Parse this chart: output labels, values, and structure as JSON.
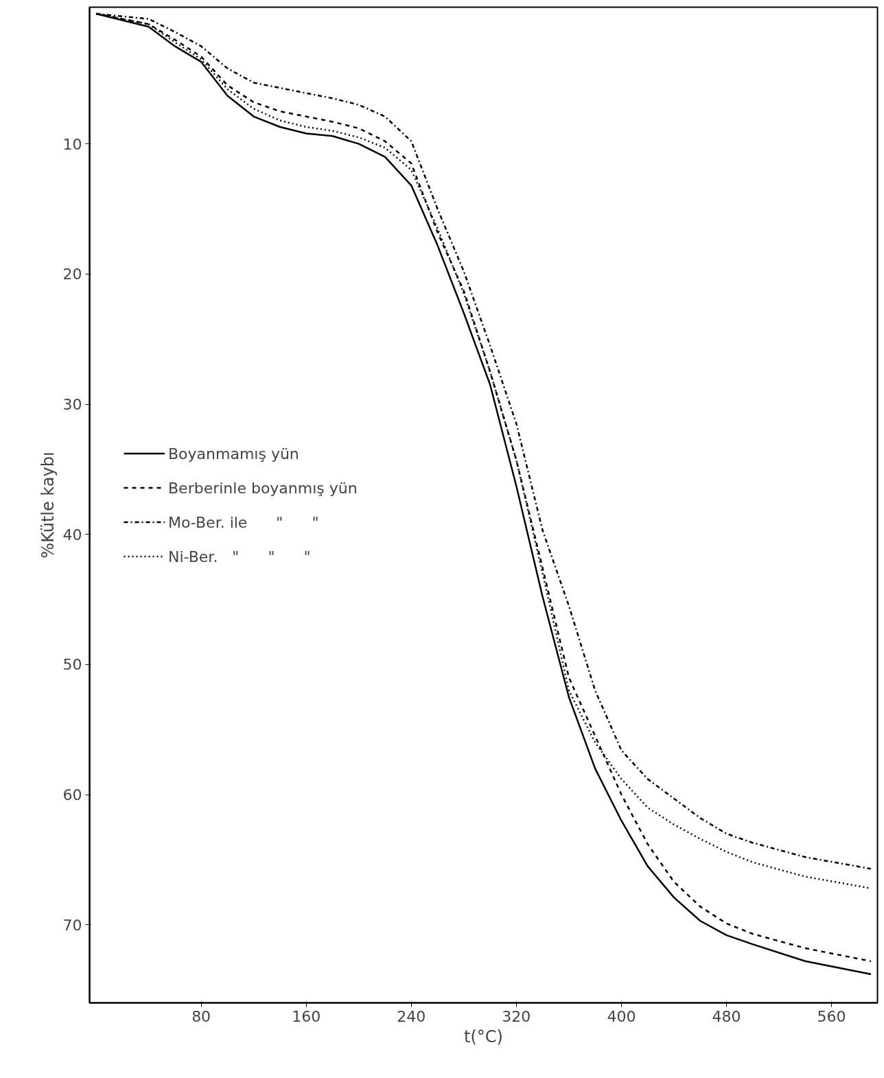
{
  "chart_data": {
    "type": "line",
    "xlabel": "t(°C)",
    "ylabel": "%Kütle kaybı",
    "x": [
      0,
      40,
      60,
      80,
      100,
      120,
      140,
      160,
      180,
      200,
      220,
      240,
      260,
      280,
      300,
      320,
      340,
      360,
      380,
      400,
      420,
      440,
      460,
      480,
      500,
      540,
      590
    ],
    "series": [
      {
        "name": "Boyanmamış yün",
        "color": "#000000",
        "line_style": "solid",
        "values": [
          0,
          1,
          2.5,
          3.7,
          6.3,
          7.9,
          8.7,
          9.2,
          9.4,
          10,
          11,
          13.2,
          17.8,
          23,
          28.5,
          36.3,
          44.8,
          52.5,
          58,
          62,
          65.5,
          67.9,
          69.7,
          70.8,
          71.5,
          72.8,
          73.8
        ]
      },
      {
        "name": "Berberinle boyanmış yün",
        "color": "#000000",
        "line_style": "dashed",
        "values": [
          0,
          0.8,
          2,
          3.3,
          5.5,
          6.8,
          7.5,
          7.9,
          8.3,
          8.8,
          9.8,
          11.5,
          16.8,
          21.3,
          27.5,
          34.3,
          42.6,
          51,
          55.5,
          60,
          63.8,
          66.7,
          68.6,
          69.9,
          70.7,
          71.8,
          72.8
        ]
      },
      {
        "name": "Mo-Ber. ile      \"      \"",
        "color": "#000000",
        "line_style": "dashdot",
        "values": [
          0,
          0.4,
          1.4,
          2.5,
          4.2,
          5.3,
          5.7,
          6.1,
          6.5,
          7,
          7.9,
          9.8,
          15,
          19.8,
          25.5,
          31.5,
          39.7,
          45.5,
          52,
          56.6,
          58.8,
          60.3,
          61.8,
          63,
          63.7,
          64.8,
          65.7
        ]
      },
      {
        "name": "Ni-Ber.   \"      \"      \"",
        "color": "#000000",
        "line_style": "dotted",
        "values": [
          0,
          0.8,
          2.2,
          3.5,
          5.8,
          7.3,
          8.2,
          8.7,
          9,
          9.5,
          10.3,
          12,
          16.5,
          21.5,
          27.5,
          34.3,
          43,
          52,
          56,
          58.8,
          61,
          62.3,
          63.4,
          64.4,
          65.2,
          66.3,
          67.2
        ]
      }
    ],
    "xlim": [
      -5,
      595
    ],
    "ylim": [
      76,
      -0.5
    ],
    "xticks": [
      80,
      160,
      240,
      320,
      400,
      480,
      560
    ],
    "yticks": [
      10,
      20,
      30,
      40,
      50,
      60,
      70
    ],
    "grid": false,
    "legend": "left",
    "marker": "none"
  }
}
